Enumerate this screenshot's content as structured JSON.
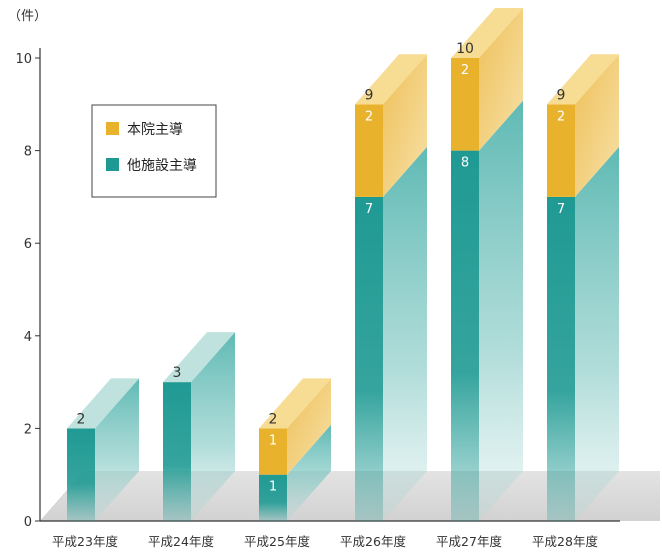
{
  "chart_data": {
    "type": "bar",
    "stacked": true,
    "three_d": true,
    "unit_label": "（件）",
    "categories": [
      "平成23年度",
      "平成24年度",
      "平成25年度",
      "平成26年度",
      "平成27年度",
      "平成28年度"
    ],
    "series": [
      {
        "name": "他施設主導",
        "color": "#1f9a93",
        "values": [
          2,
          3,
          1,
          7,
          8,
          7
        ]
      },
      {
        "name": "本院主導",
        "color": "#e9b22c",
        "values": [
          0,
          0,
          1,
          2,
          2,
          2
        ]
      }
    ],
    "totals": [
      "2",
      "3",
      "2",
      "9",
      "10",
      "9"
    ],
    "segment_labels": [
      [
        "",
        "",
        "1",
        "7",
        "8",
        "7"
      ],
      [
        "",
        "",
        "1",
        "2",
        "2",
        "2"
      ]
    ],
    "yticks": [
      "0",
      "2",
      "4",
      "6",
      "8",
      "10"
    ],
    "ylim": [
      0,
      10
    ],
    "legend": {
      "placement": "top-left",
      "items": [
        {
          "label": "本院主導",
          "color": "#e9b22c"
        },
        {
          "label": "他施設主導",
          "color": "#1f9a93"
        }
      ]
    }
  }
}
